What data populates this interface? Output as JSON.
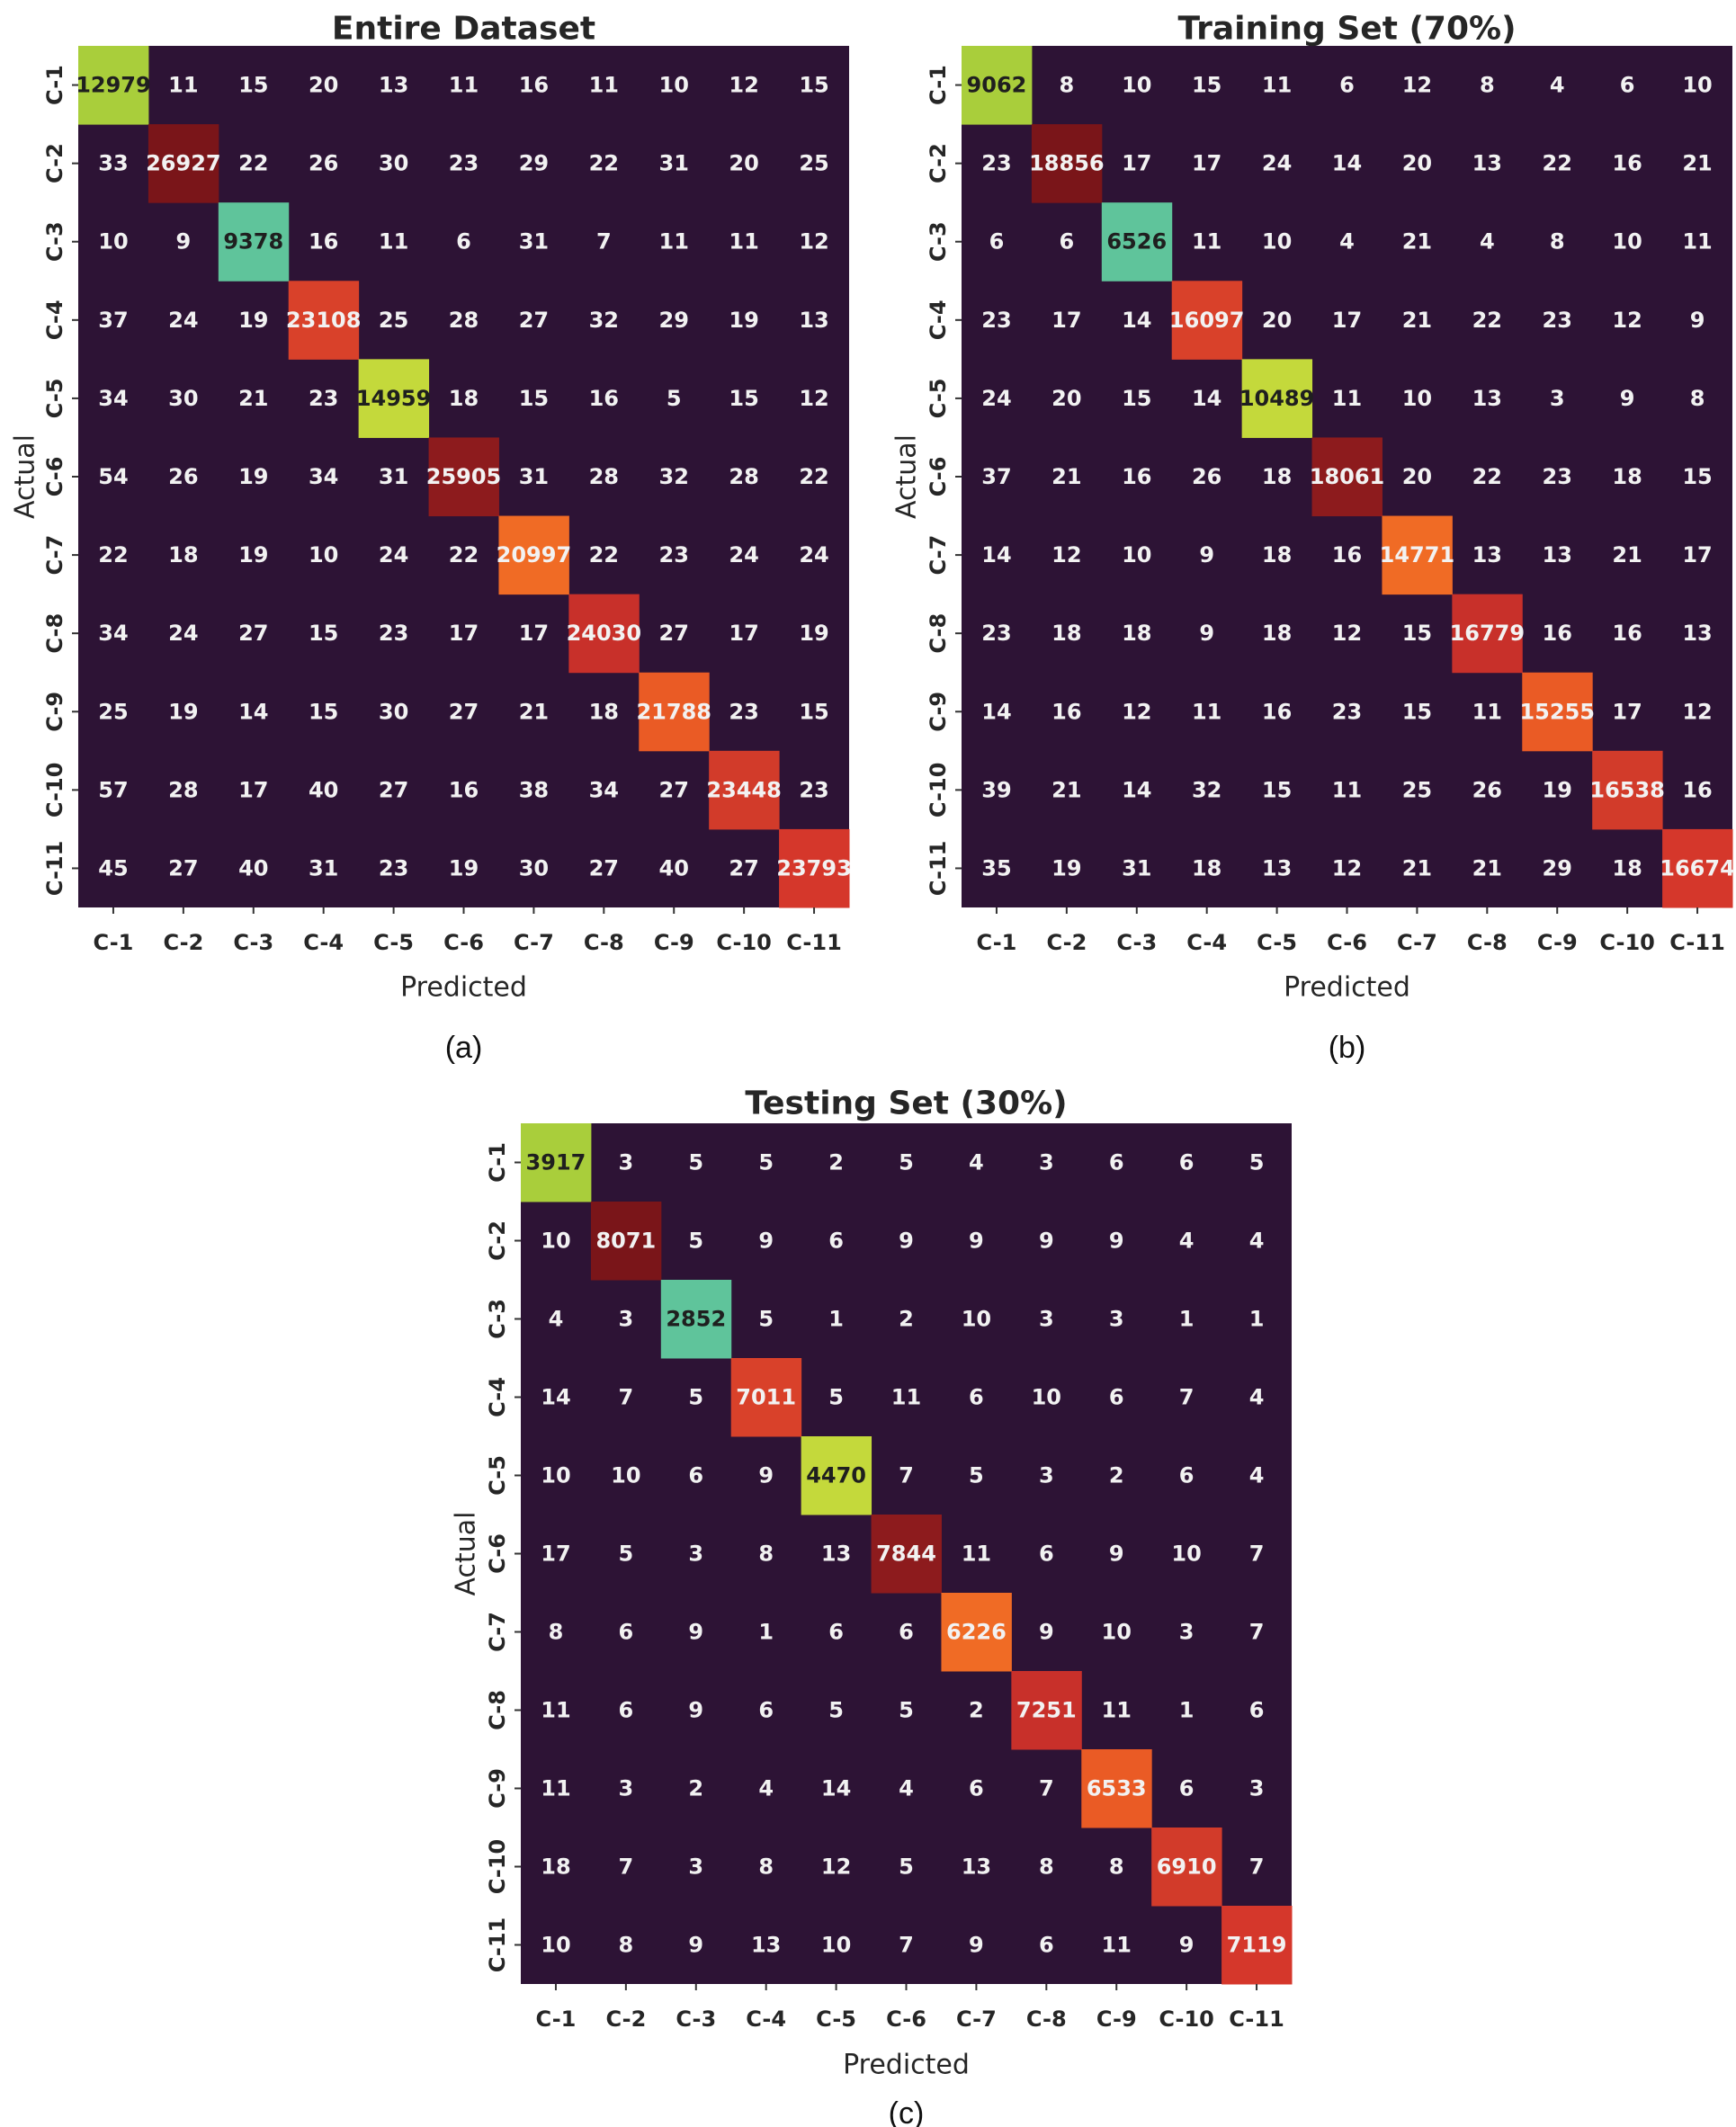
{
  "colors": {
    "background": "#2d1335",
    "diagonal": [
      "#a9ce3b",
      "#7a1519",
      "#5fc49b",
      "#d9412a",
      "#c4d93b",
      "#8d1b1d",
      "#f06b25",
      "#c8302a",
      "#ea5b25",
      "#d23b2a",
      "#d5372b"
    ],
    "light_text": "#f2f2f2",
    "dark_text": "#1f1f1f"
  },
  "chart_data": [
    {
      "type": "heatmap",
      "title": "Entire Dataset",
      "caption": "(a)",
      "xlabel": "Predicted",
      "ylabel": "Actual",
      "x_categories": [
        "C-1",
        "C-2",
        "C-3",
        "C-4",
        "C-5",
        "C-6",
        "C-7",
        "C-8",
        "C-9",
        "C-10",
        "C-11"
      ],
      "y_categories": [
        "C-1",
        "C-2",
        "C-3",
        "C-4",
        "C-5",
        "C-6",
        "C-7",
        "C-8",
        "C-9",
        "C-10",
        "C-11"
      ],
      "values": [
        [
          12979,
          11,
          15,
          20,
          13,
          11,
          16,
          11,
          10,
          12,
          15
        ],
        [
          33,
          26927,
          22,
          26,
          30,
          23,
          29,
          22,
          31,
          20,
          25
        ],
        [
          10,
          9,
          9378,
          16,
          11,
          6,
          31,
          7,
          11,
          11,
          12
        ],
        [
          37,
          24,
          19,
          23108,
          25,
          28,
          27,
          32,
          29,
          19,
          13
        ],
        [
          34,
          30,
          21,
          23,
          14959,
          18,
          15,
          16,
          5,
          15,
          12
        ],
        [
          54,
          26,
          19,
          34,
          31,
          25905,
          31,
          28,
          32,
          28,
          22
        ],
        [
          22,
          18,
          19,
          10,
          24,
          22,
          20997,
          22,
          23,
          24,
          24
        ],
        [
          34,
          24,
          27,
          15,
          23,
          17,
          17,
          24030,
          27,
          17,
          19
        ],
        [
          25,
          19,
          14,
          15,
          30,
          27,
          21,
          18,
          21788,
          23,
          15
        ],
        [
          57,
          28,
          17,
          40,
          27,
          16,
          38,
          34,
          27,
          23448,
          23
        ],
        [
          45,
          27,
          40,
          31,
          23,
          19,
          30,
          27,
          40,
          27,
          23793
        ]
      ]
    },
    {
      "type": "heatmap",
      "title": "Training Set (70%)",
      "caption": "(b)",
      "xlabel": "Predicted",
      "ylabel": "Actual",
      "x_categories": [
        "C-1",
        "C-2",
        "C-3",
        "C-4",
        "C-5",
        "C-6",
        "C-7",
        "C-8",
        "C-9",
        "C-10",
        "C-11"
      ],
      "y_categories": [
        "C-1",
        "C-2",
        "C-3",
        "C-4",
        "C-5",
        "C-6",
        "C-7",
        "C-8",
        "C-9",
        "C-10",
        "C-11"
      ],
      "values": [
        [
          9062,
          8,
          10,
          15,
          11,
          6,
          12,
          8,
          4,
          6,
          10
        ],
        [
          23,
          18856,
          17,
          17,
          24,
          14,
          20,
          13,
          22,
          16,
          21
        ],
        [
          6,
          6,
          6526,
          11,
          10,
          4,
          21,
          4,
          8,
          10,
          11
        ],
        [
          23,
          17,
          14,
          16097,
          20,
          17,
          21,
          22,
          23,
          12,
          9
        ],
        [
          24,
          20,
          15,
          14,
          10489,
          11,
          10,
          13,
          3,
          9,
          8
        ],
        [
          37,
          21,
          16,
          26,
          18,
          18061,
          20,
          22,
          23,
          18,
          15
        ],
        [
          14,
          12,
          10,
          9,
          18,
          16,
          14771,
          13,
          13,
          21,
          17
        ],
        [
          23,
          18,
          18,
          9,
          18,
          12,
          15,
          16779,
          16,
          16,
          13
        ],
        [
          14,
          16,
          12,
          11,
          16,
          23,
          15,
          11,
          15255,
          17,
          12
        ],
        [
          39,
          21,
          14,
          32,
          15,
          11,
          25,
          26,
          19,
          16538,
          16
        ],
        [
          35,
          19,
          31,
          18,
          13,
          12,
          21,
          21,
          29,
          18,
          16674
        ]
      ]
    },
    {
      "type": "heatmap",
      "title": "Testing Set (30%)",
      "caption": "(c)",
      "xlabel": "Predicted",
      "ylabel": "Actual",
      "x_categories": [
        "C-1",
        "C-2",
        "C-3",
        "C-4",
        "C-5",
        "C-6",
        "C-7",
        "C-8",
        "C-9",
        "C-10",
        "C-11"
      ],
      "y_categories": [
        "C-1",
        "C-2",
        "C-3",
        "C-4",
        "C-5",
        "C-6",
        "C-7",
        "C-8",
        "C-9",
        "C-10",
        "C-11"
      ],
      "values": [
        [
          3917,
          3,
          5,
          5,
          2,
          5,
          4,
          3,
          6,
          6,
          5
        ],
        [
          10,
          8071,
          5,
          9,
          6,
          9,
          9,
          9,
          9,
          4,
          4
        ],
        [
          4,
          3,
          2852,
          5,
          1,
          2,
          10,
          3,
          3,
          1,
          1
        ],
        [
          14,
          7,
          5,
          7011,
          5,
          11,
          6,
          10,
          6,
          7,
          4
        ],
        [
          10,
          10,
          6,
          9,
          4470,
          7,
          5,
          3,
          2,
          6,
          4
        ],
        [
          17,
          5,
          3,
          8,
          13,
          7844,
          11,
          6,
          9,
          10,
          7
        ],
        [
          8,
          6,
          9,
          1,
          6,
          6,
          6226,
          9,
          10,
          3,
          7
        ],
        [
          11,
          6,
          9,
          6,
          5,
          5,
          2,
          7251,
          11,
          1,
          6
        ],
        [
          11,
          3,
          2,
          4,
          14,
          4,
          6,
          7,
          6533,
          6,
          3
        ],
        [
          18,
          7,
          3,
          8,
          12,
          5,
          13,
          8,
          8,
          6910,
          7
        ],
        [
          10,
          8,
          9,
          13,
          10,
          7,
          9,
          6,
          11,
          9,
          7119
        ]
      ]
    }
  ]
}
